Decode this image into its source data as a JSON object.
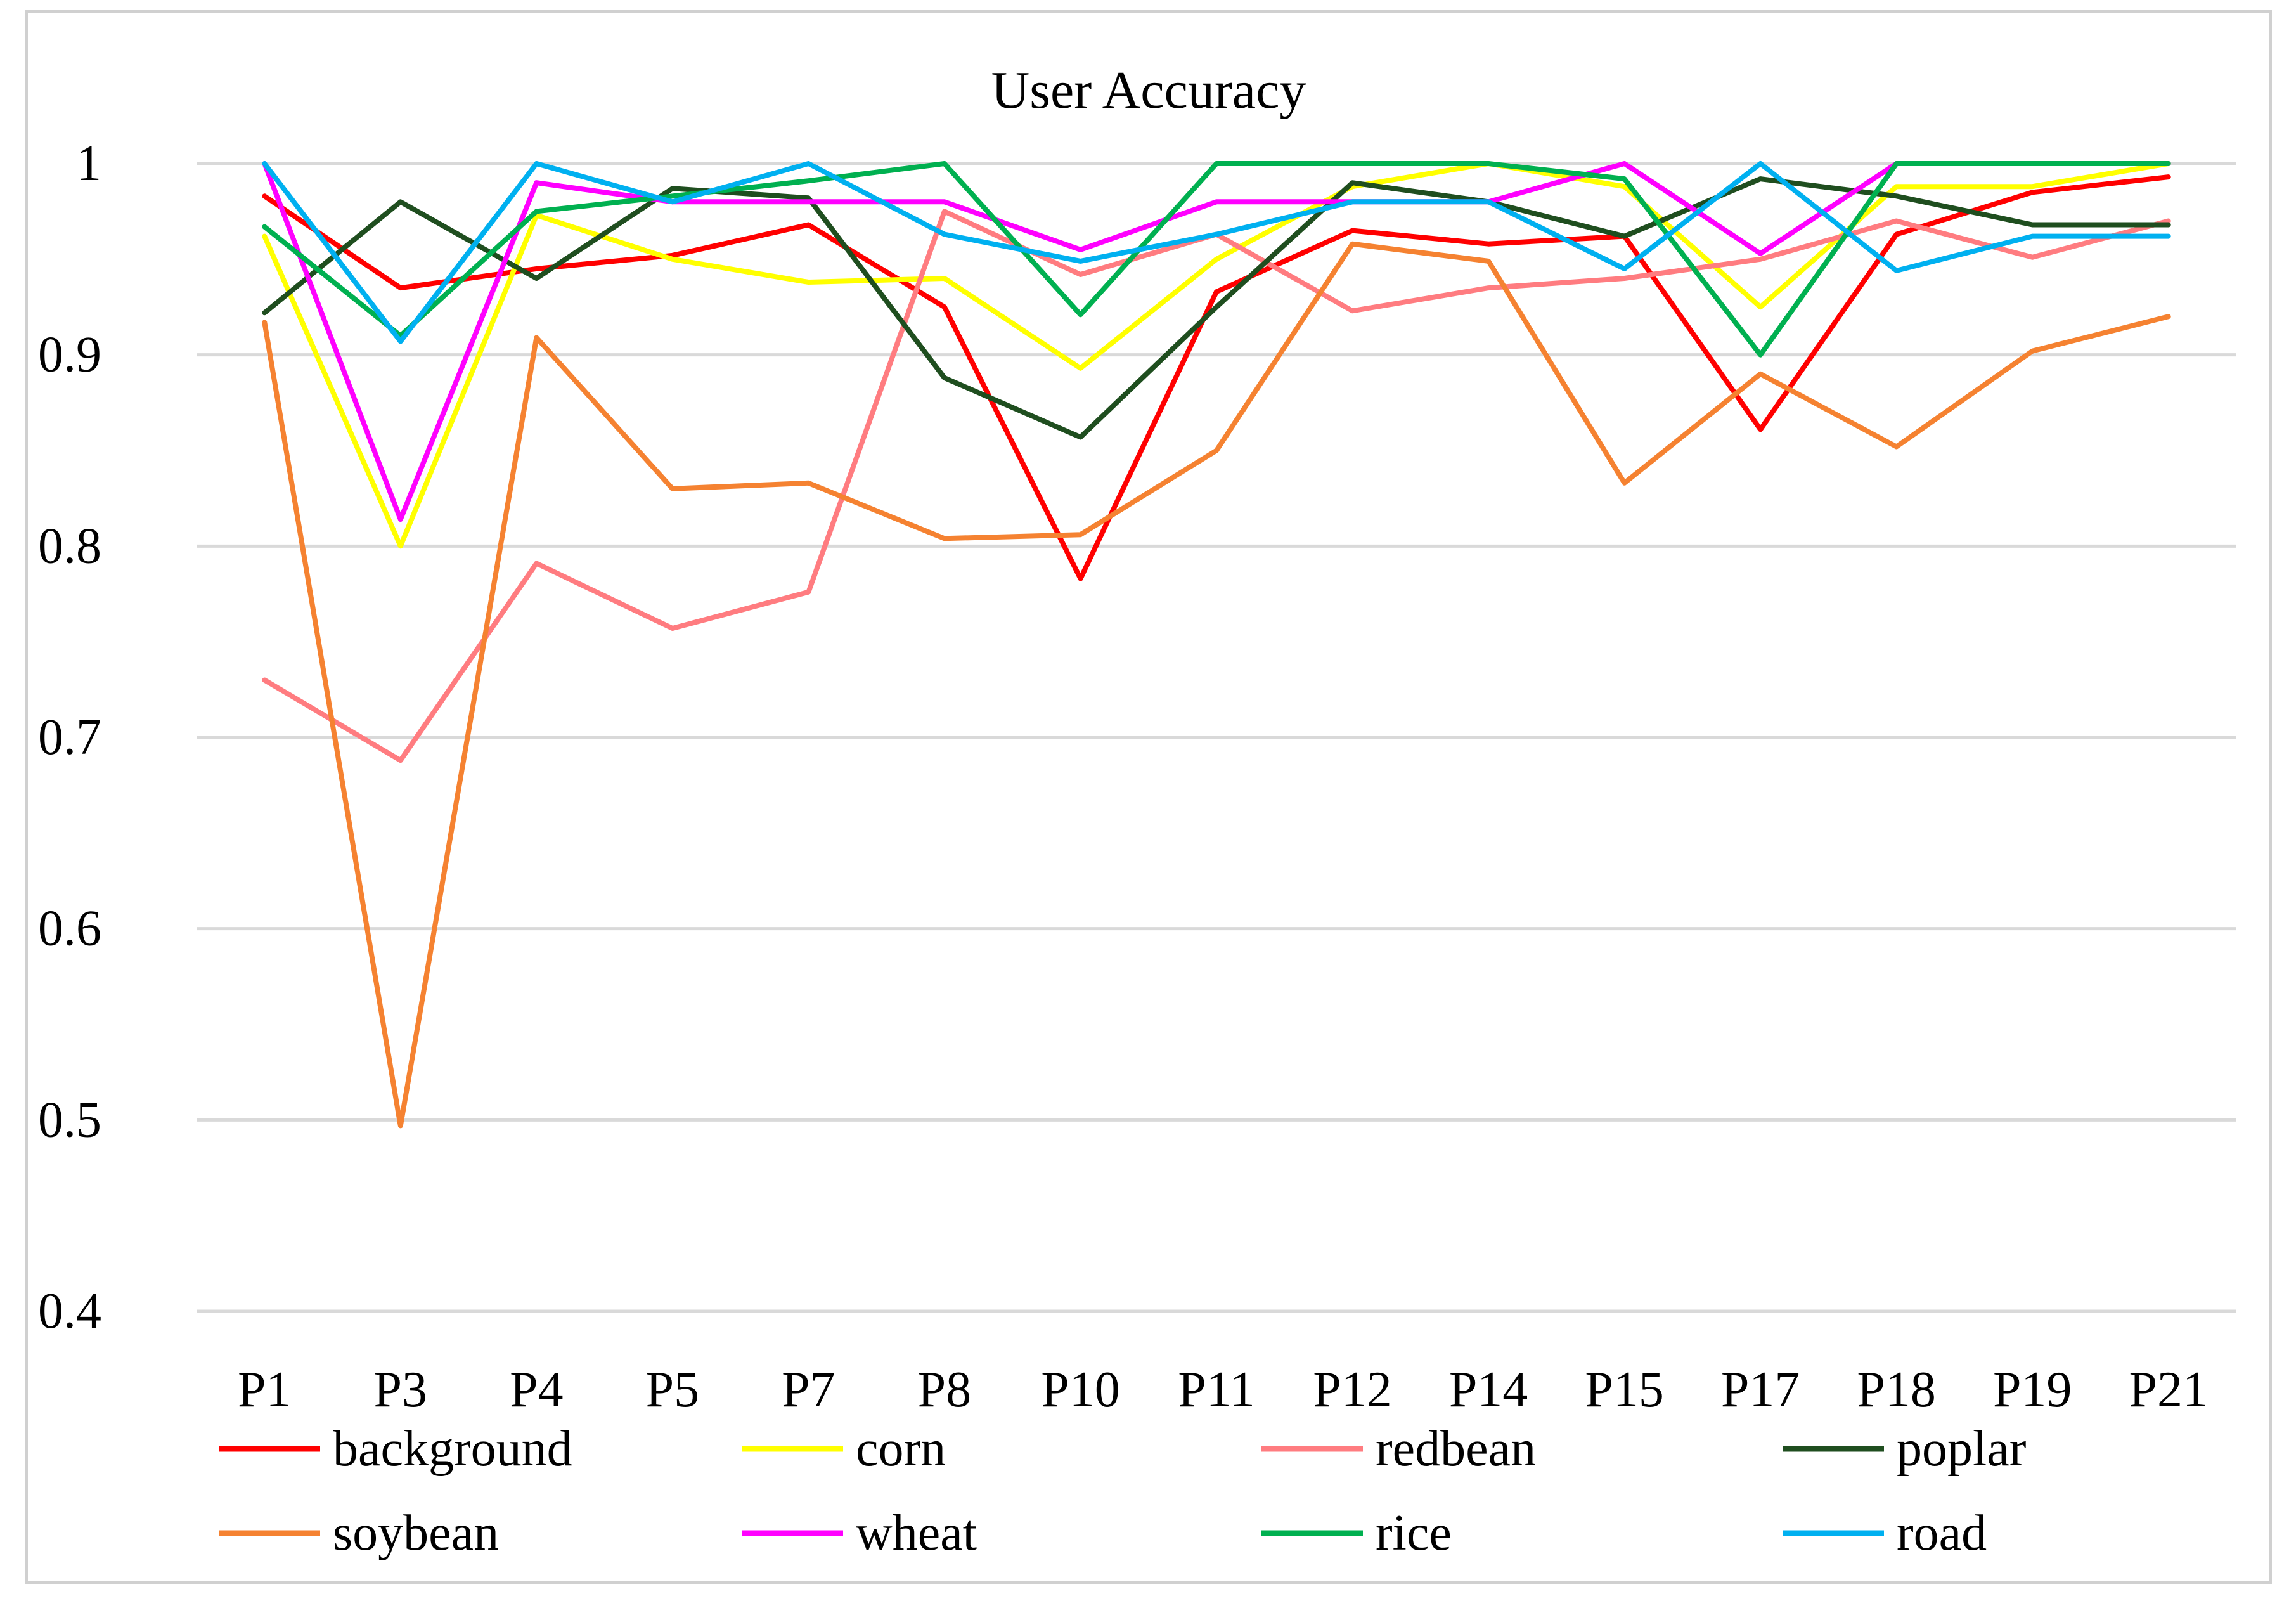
{
  "chart_data": {
    "type": "line",
    "title": "User Accuracy",
    "xlabel": "",
    "ylabel": "",
    "ylim": [
      0.4,
      1.0
    ],
    "y_ticks": [
      0.4,
      0.5,
      0.6,
      0.7,
      0.8,
      0.9,
      1
    ],
    "y_tick_labels": [
      "0.4",
      "0.5",
      "0.6",
      "0.7",
      "0.8",
      "0.9",
      "1"
    ],
    "grid": true,
    "legend_position": "bottom",
    "categories": [
      "P1",
      "P3",
      "P4",
      "P5",
      "P7",
      "P8",
      "P10",
      "P11",
      "P12",
      "P14",
      "P15",
      "P17",
      "P18",
      "P19",
      "P21"
    ],
    "series": [
      {
        "name": "background",
        "color": "#ff0000",
        "values": [
          0.983,
          0.935,
          0.945,
          0.952,
          0.968,
          0.925,
          0.783,
          0.933,
          0.965,
          0.958,
          0.962,
          0.861,
          0.963,
          0.985,
          0.993
        ]
      },
      {
        "name": "corn",
        "color": "#ffff00",
        "values": [
          0.962,
          0.8,
          0.973,
          0.95,
          0.938,
          0.94,
          0.893,
          0.95,
          0.988,
          1.0,
          0.988,
          0.925,
          0.988,
          0.988,
          1.0
        ]
      },
      {
        "name": "redbean",
        "color": "#ff7c80",
        "values": [
          0.73,
          0.688,
          0.791,
          0.757,
          0.776,
          0.975,
          0.942,
          0.963,
          0.923,
          0.935,
          0.94,
          0.95,
          0.97,
          0.951,
          0.97
        ]
      },
      {
        "name": "poplar",
        "color": "#1f4e1f",
        "values": [
          0.922,
          0.98,
          0.94,
          0.987,
          0.982,
          0.888,
          0.857,
          0.925,
          0.99,
          0.98,
          0.962,
          0.992,
          0.983,
          0.968,
          0.968
        ]
      },
      {
        "name": "soybean",
        "color": "#f58231",
        "values": [
          0.917,
          0.497,
          0.909,
          0.83,
          0.833,
          0.804,
          0.806,
          0.85,
          0.958,
          0.949,
          0.833,
          0.89,
          0.852,
          0.902,
          0.92
        ]
      },
      {
        "name": "wheat",
        "color": "#ff00ff",
        "values": [
          1.0,
          0.814,
          0.99,
          0.98,
          0.98,
          0.98,
          0.955,
          0.98,
          0.98,
          0.98,
          1.0,
          0.953,
          1.0,
          1.0,
          1.0
        ]
      },
      {
        "name": "rice",
        "color": "#00b050",
        "values": [
          0.967,
          0.91,
          0.975,
          0.983,
          0.991,
          1.0,
          0.921,
          1.0,
          1.0,
          1.0,
          0.992,
          0.9,
          1.0,
          1.0,
          1.0
        ]
      },
      {
        "name": "road",
        "color": "#00b0f0",
        "values": [
          1.0,
          0.907,
          1.0,
          0.98,
          1.0,
          0.963,
          0.949,
          0.963,
          0.98,
          0.98,
          0.945,
          1.0,
          0.944,
          0.962,
          0.962
        ]
      }
    ]
  }
}
